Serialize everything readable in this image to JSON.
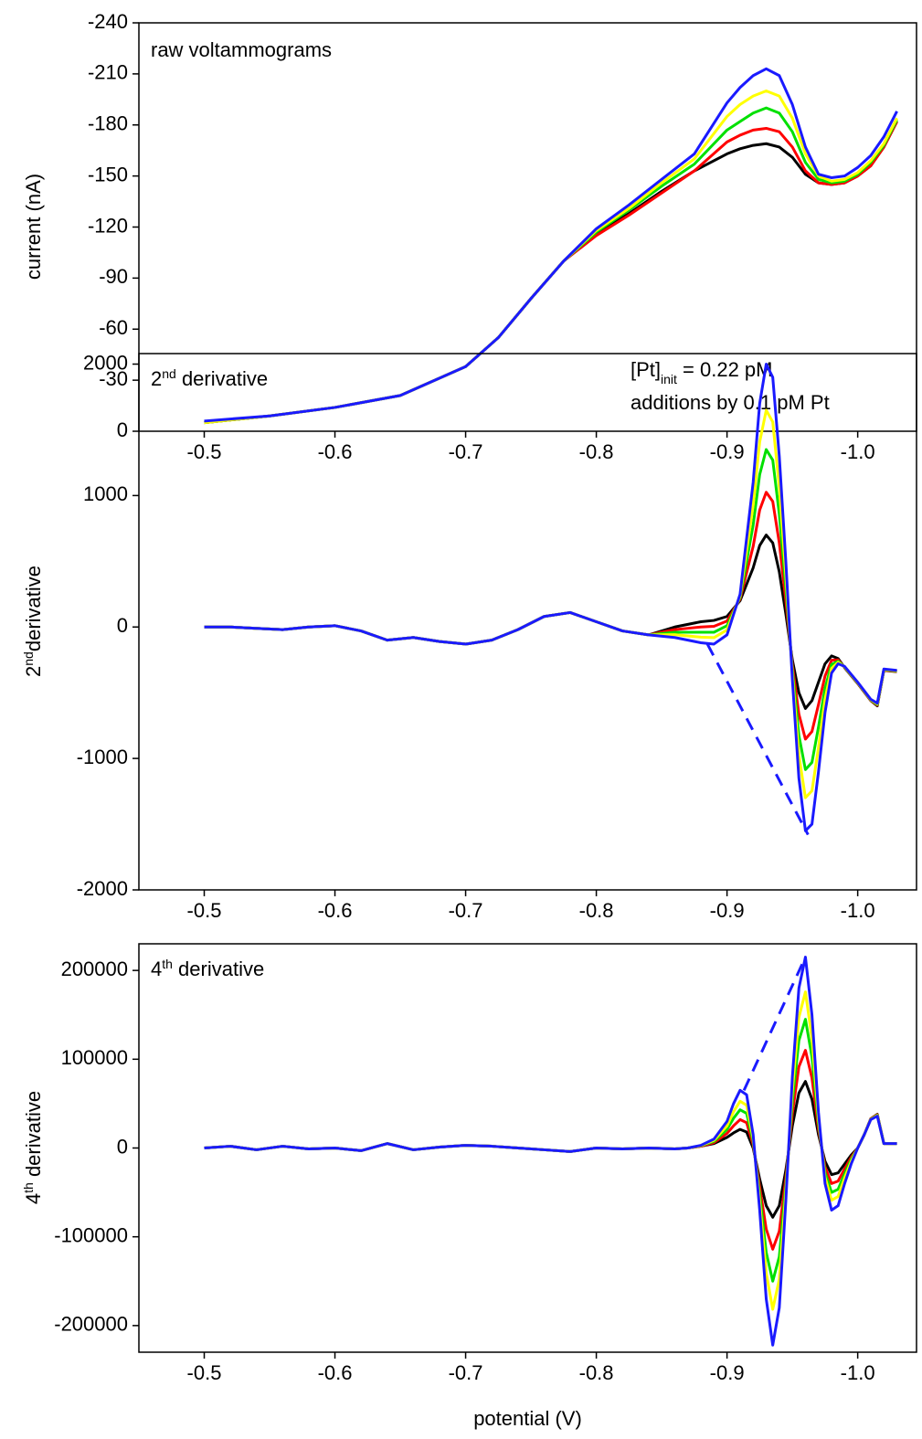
{
  "chart_data": [
    {
      "type": "line",
      "title": "raw voltammograms",
      "ylabel": "current (nA)",
      "annotations": [
        {
          "base": "[Pt]",
          "sub": "init",
          "rest": " = 0.22 pM"
        },
        "additions by 0.1 pM Pt"
      ],
      "xlim": [
        -0.45,
        -1.045
      ],
      "xticks": [
        -0.5,
        -0.6,
        -0.7,
        -0.8,
        -0.9,
        {
          "value": -1,
          "label": "-1.0"
        }
      ],
      "ylim": [
        0,
        -240
      ],
      "yticks": [
        0,
        -30,
        -60,
        -90,
        -120,
        -150,
        -180,
        -210,
        -240
      ],
      "x": [
        -0.5,
        -0.55,
        -0.6,
        -0.65,
        -0.7,
        -0.725,
        -0.75,
        -0.775,
        -0.8,
        -0.825,
        -0.85,
        -0.875,
        -0.9,
        -0.91,
        -0.92,
        -0.93,
        -0.94,
        -0.95,
        -0.96,
        -0.97,
        -0.98,
        -0.99,
        -1.0,
        -1.01,
        -1.02,
        -1.03
      ],
      "series": [
        {
          "color": "#000000",
          "values": [
            -5,
            -9,
            -14,
            -21,
            -38,
            -55,
            -78,
            -100,
            -116,
            -128,
            -141,
            -153,
            -163,
            -166,
            -168,
            -169,
            -167,
            -161,
            -151,
            -146,
            -145,
            -146,
            -150,
            -156,
            -167,
            -182
          ]
        },
        {
          "color": "#ff0000",
          "values": [
            -5,
            -9,
            -14,
            -21,
            -38,
            -55,
            -78,
            -100,
            -115,
            -127,
            -140,
            -153,
            -170,
            -174,
            -177,
            -178,
            -176,
            -167,
            -153,
            -146,
            -145,
            -146,
            -150,
            -156,
            -167,
            -182
          ]
        },
        {
          "color": "#00e000",
          "values": [
            -5,
            -9,
            -14,
            -21,
            -38,
            -55,
            -78,
            -100,
            -117,
            -130,
            -144,
            -157,
            -177,
            -182,
            -187,
            -190,
            -187,
            -176,
            -158,
            -148,
            -146,
            -147,
            -151,
            -158,
            -168,
            -183
          ]
        },
        {
          "color": "#ffff00",
          "values": [
            -5,
            -9,
            -14,
            -21,
            -38,
            -55,
            -78,
            -100,
            -118,
            -131,
            -146,
            -160,
            -185,
            -192,
            -197,
            -200,
            -197,
            -184,
            -163,
            -150,
            -147,
            -148,
            -152,
            -159,
            -169,
            -184
          ]
        },
        {
          "color": "#1a1aff",
          "values": [
            -6,
            -9,
            -14,
            -21,
            -38,
            -55,
            -78,
            -100,
            -119,
            -133,
            -148,
            -163,
            -193,
            -202,
            -209,
            -213,
            -209,
            -192,
            -167,
            -151,
            -149,
            -150,
            -155,
            -162,
            -173,
            -188
          ]
        }
      ]
    },
    {
      "type": "line",
      "title": {
        "base": "2",
        "sup": "nd",
        "rest": " derivative"
      },
      "ylabel": {
        "base": "2",
        "sup": "nd",
        "rest": "derivative"
      },
      "xlim": [
        -0.45,
        -1.045
      ],
      "xticks": [
        -0.5,
        -0.6,
        -0.7,
        -0.8,
        -0.9,
        {
          "value": -1,
          "label": "-1.0"
        }
      ],
      "ylim": [
        -2000,
        2080
      ],
      "yticks": [
        -2000,
        -1000,
        0,
        1000,
        2000
      ],
      "x": [
        -0.5,
        -0.52,
        -0.54,
        -0.56,
        -0.58,
        -0.6,
        -0.62,
        -0.64,
        -0.66,
        -0.68,
        -0.7,
        -0.72,
        -0.74,
        -0.76,
        -0.78,
        -0.8,
        -0.82,
        -0.84,
        -0.86,
        -0.87,
        -0.88,
        -0.89,
        -0.9,
        -0.91,
        -0.92,
        -0.925,
        -0.93,
        -0.935,
        -0.94,
        -0.945,
        -0.95,
        -0.955,
        -0.96,
        -0.965,
        -0.97,
        -0.975,
        -0.98,
        -0.985,
        -0.99,
        -1.0,
        -1.01,
        -1.015,
        -1.02,
        -1.03
      ],
      "series": [
        {
          "color": "#000000",
          "values": [
            0,
            0,
            -10,
            -20,
            0,
            10,
            -30,
            -100,
            -80,
            -110,
            -130,
            -100,
            -20,
            80,
            110,
            40,
            -30,
            -60,
            0,
            20,
            40,
            50,
            80,
            200,
            450,
            620,
            700,
            640,
            420,
            100,
            -250,
            -500,
            -620,
            -560,
            -420,
            -280,
            -220,
            -240,
            -310,
            -430,
            -560,
            -600,
            -330,
            -340
          ]
        },
        {
          "color": "#ff0000",
          "values": [
            0,
            0,
            -10,
            -20,
            0,
            10,
            -30,
            -100,
            -80,
            -110,
            -130,
            -100,
            -20,
            80,
            110,
            40,
            -30,
            -60,
            -20,
            -10,
            0,
            5,
            45,
            213,
            613,
            890,
            1025,
            955,
            640,
            200,
            -288,
            -663,
            -853,
            -795,
            -590,
            -373,
            -253,
            -250,
            -308,
            -428,
            -558,
            -595,
            -328,
            -338
          ]
        },
        {
          "color": "#00e000",
          "values": [
            0,
            0,
            -10,
            -20,
            0,
            10,
            -30,
            -100,
            -80,
            -110,
            -130,
            -100,
            -20,
            80,
            110,
            40,
            -30,
            -60,
            -40,
            -40,
            -40,
            -40,
            10,
            225,
            775,
            1160,
            1350,
            1270,
            860,
            300,
            -325,
            -825,
            -1085,
            -1030,
            -760,
            -465,
            -285,
            -260,
            -305,
            -425,
            -555,
            -590,
            -325,
            -335
          ]
        },
        {
          "color": "#ffff00",
          "values": [
            0,
            0,
            -10,
            -20,
            0,
            10,
            -30,
            -100,
            -80,
            -110,
            -130,
            -100,
            -20,
            80,
            110,
            40,
            -30,
            -60,
            -58,
            -68,
            -77,
            -81,
            -22,
            237,
            925,
            1408,
            1649,
            1560,
            1062,
            392,
            -360,
            -975,
            -1299,
            -1246,
            -916,
            -550,
            -315,
            -269,
            -303,
            -423,
            -553,
            -585,
            -323,
            -333
          ]
        },
        {
          "color": "#1a1aff",
          "values": [
            0,
            0,
            -10,
            -20,
            0,
            10,
            -30,
            -100,
            -80,
            -110,
            -130,
            -100,
            -20,
            80,
            110,
            40,
            -30,
            -60,
            -80,
            -100,
            -120,
            -130,
            -60,
            250,
            1100,
            1700,
            2000,
            1900,
            1300,
            500,
            -400,
            -1150,
            -1550,
            -1500,
            -1100,
            -650,
            -350,
            -280,
            -300,
            -420,
            -550,
            -580,
            -320,
            -330
          ]
        }
      ],
      "peak_line": {
        "color": "#1a1aff",
        "x": [
          -0.885,
          -0.962
        ],
        "y": [
          -130,
          -1580
        ]
      }
    },
    {
      "type": "line",
      "title": {
        "base": "4",
        "sup": "th",
        "rest": " derivative"
      },
      "ylabel": {
        "base": "4",
        "sup": "th",
        "rest": " derivative"
      },
      "xlabel": "potential (V)",
      "xlim": [
        -0.45,
        -1.045
      ],
      "xticks": [
        -0.5,
        -0.6,
        -0.7,
        -0.8,
        -0.9,
        {
          "value": -1,
          "label": "-1.0"
        }
      ],
      "ylim": [
        -230000,
        230000
      ],
      "yticks": [
        -200000,
        -100000,
        0,
        100000,
        200000
      ],
      "x": [
        -0.5,
        -0.52,
        -0.54,
        -0.56,
        -0.58,
        -0.6,
        -0.62,
        -0.64,
        -0.66,
        -0.68,
        -0.7,
        -0.72,
        -0.74,
        -0.76,
        -0.78,
        -0.8,
        -0.82,
        -0.84,
        -0.86,
        -0.87,
        -0.88,
        -0.89,
        -0.9,
        -0.905,
        -0.91,
        -0.915,
        -0.92,
        -0.925,
        -0.93,
        -0.935,
        -0.94,
        -0.945,
        -0.95,
        -0.955,
        -0.96,
        -0.965,
        -0.97,
        -0.975,
        -0.98,
        -0.985,
        -0.99,
        -0.995,
        -1.0,
        -1.005,
        -1.01,
        -1.015,
        -1.02,
        -1.03
      ],
      "series": [
        {
          "color": "#000000",
          "values": [
            0,
            2000,
            -2000,
            2000,
            -1000,
            0,
            -3000,
            5000,
            -2000,
            1000,
            3000,
            2000,
            0,
            -2000,
            -4000,
            0,
            -1000,
            0,
            -1000,
            0,
            2000,
            5000,
            12000,
            17000,
            21000,
            18000,
            0,
            -35000,
            -65000,
            -78000,
            -65000,
            -25000,
            25000,
            62000,
            75000,
            55000,
            15000,
            -15000,
            -30000,
            -28000,
            -18000,
            -8000,
            0,
            15000,
            33000,
            38000,
            5000,
            5000
          ]
        },
        {
          "color": "#ff0000",
          "values": [
            0,
            2000,
            -2000,
            2000,
            -1000,
            0,
            -3000,
            5000,
            -2000,
            1000,
            3000,
            2000,
            0,
            -2000,
            -4000,
            0,
            -1000,
            0,
            -1000,
            0,
            2000,
            6000,
            16500,
            25000,
            32000,
            28500,
            3800,
            -43800,
            -91300,
            -114000,
            -93800,
            -33800,
            38800,
            91500,
            110000,
            78800,
            21300,
            -21300,
            -40000,
            -37300,
            -23500,
            -10500,
            0,
            15000,
            33000,
            37500,
            5000,
            5000
          ]
        },
        {
          "color": "#00e000",
          "values": [
            0,
            2000,
            -2000,
            2000,
            -1000,
            0,
            -3000,
            5000,
            -2000,
            1000,
            3000,
            2000,
            0,
            -2000,
            -4000,
            0,
            -1000,
            0,
            -1000,
            0,
            2500,
            7500,
            21000,
            33500,
            43000,
            39000,
            7500,
            -52500,
            -117500,
            -150000,
            -122500,
            -42500,
            52500,
            121000,
            145000,
            102500,
            27500,
            -27500,
            -50000,
            -46500,
            -29000,
            -13000,
            0,
            15000,
            32500,
            37000,
            5000,
            5000
          ]
        },
        {
          "color": "#ffff00",
          "values": [
            0,
            2000,
            -2000,
            2000,
            -1000,
            0,
            -3000,
            5000,
            -2000,
            1000,
            3000,
            2000,
            0,
            -2000,
            -4000,
            0,
            -1000,
            0,
            -1000,
            0,
            2700,
            8600,
            25000,
            40800,
            52700,
            48200,
            10800,
            -60200,
            -140600,
            -181700,
            -147800,
            -50200,
            64600,
            147000,
            175800,
            123400,
            33000,
            -33000,
            -58800,
            -54600,
            -33800,
            -15200,
            0,
            15000,
            32300,
            36600,
            5000,
            5000
          ]
        },
        {
          "color": "#1a1aff",
          "values": [
            0,
            2000,
            -2000,
            2000,
            -1000,
            0,
            -3000,
            5000,
            -2000,
            1000,
            3000,
            2000,
            0,
            -2000,
            -4000,
            0,
            -1000,
            0,
            -1000,
            0,
            3000,
            10000,
            30000,
            50000,
            65000,
            60000,
            15000,
            -70000,
            -170000,
            -222000,
            -180000,
            -60000,
            80000,
            180000,
            215000,
            150000,
            40000,
            -40000,
            -70000,
            -65000,
            -40000,
            -18000,
            0,
            15000,
            32000,
            36000,
            5000,
            5000
          ]
        }
      ],
      "peak_line": {
        "color": "#1a1aff",
        "x": [
          -0.913,
          -0.96
        ],
        "y": [
          65000,
          215000
        ]
      }
    }
  ]
}
